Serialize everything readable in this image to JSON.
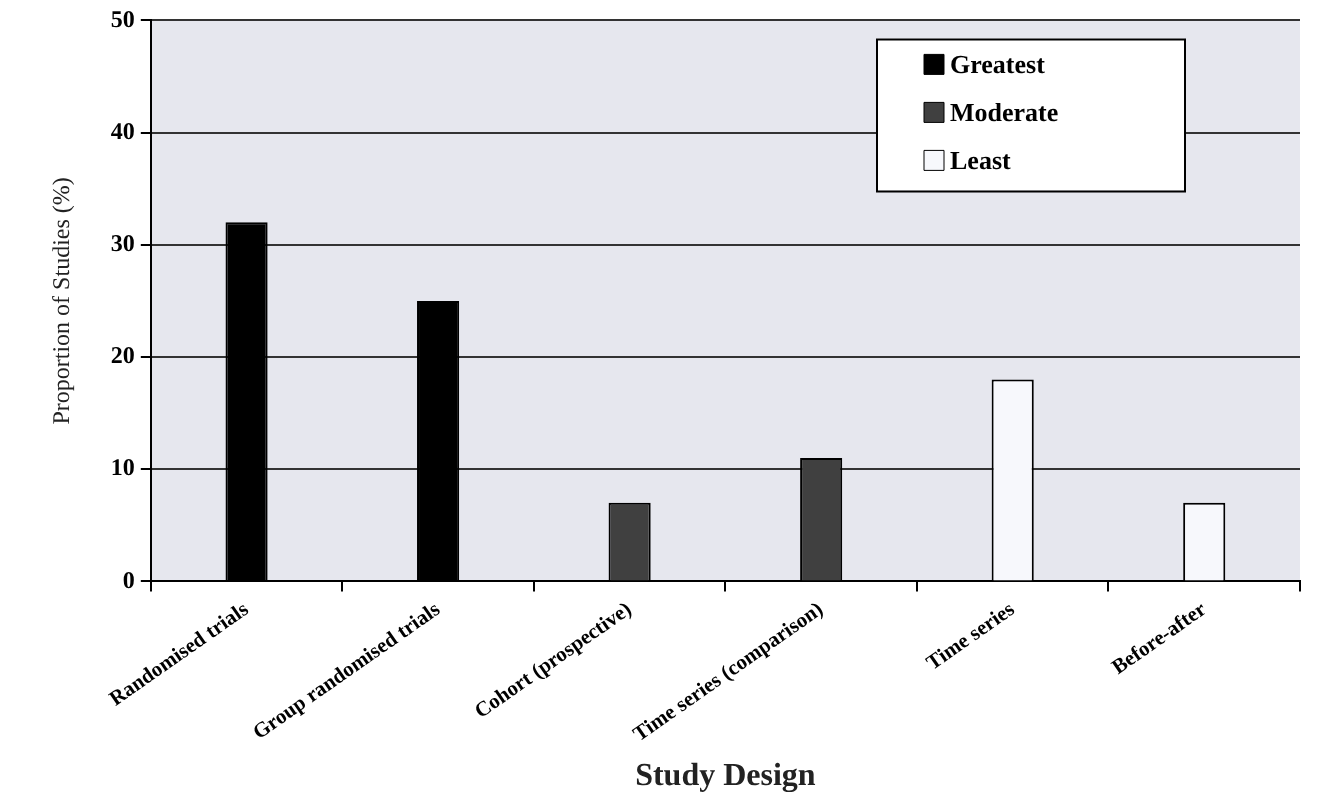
{
  "chart_data": {
    "type": "bar",
    "xlabel": "Study Design",
    "ylabel": "Proportion of Studies (%)",
    "categories": [
      "Randomised trials",
      "Group randomised trials",
      "Cohort (prospective)",
      "Time series (comparison)",
      "Time series",
      "Before-after"
    ],
    "series": [
      {
        "name": "Greatest",
        "color": "#000000",
        "values": [
          32,
          25,
          null,
          null,
          null,
          null
        ]
      },
      {
        "name": "Moderate",
        "color": "#404040",
        "values": [
          null,
          null,
          7,
          11,
          null,
          null
        ]
      },
      {
        "name": "Least",
        "color": "#f7f8fc",
        "values": [
          null,
          null,
          null,
          null,
          18,
          7
        ]
      }
    ],
    "ylim": [
      0,
      50
    ],
    "yticks": [
      0,
      10,
      20,
      30,
      40,
      50
    ],
    "grid": "y",
    "legend": "top right"
  }
}
